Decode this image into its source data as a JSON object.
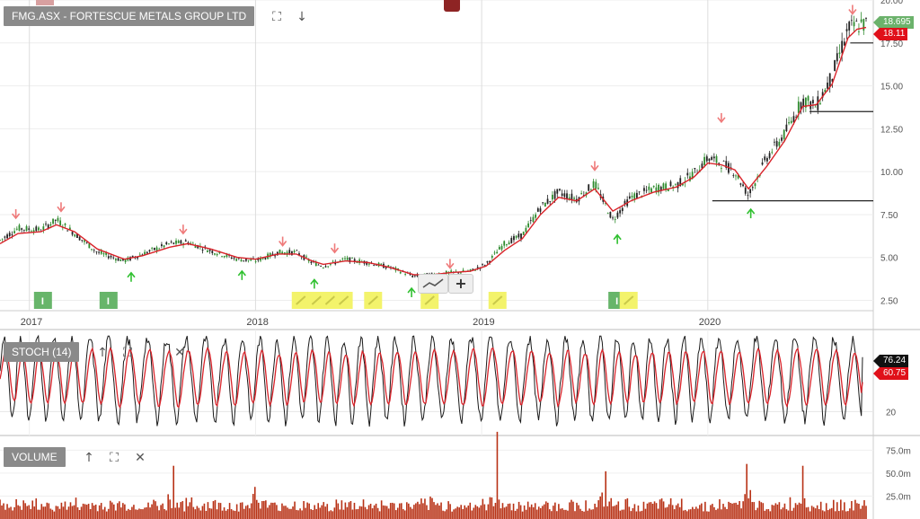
{
  "panels": {
    "main": {
      "title": "FMG.ASX - FORTESCUE METALS GROUP LTD"
    },
    "stoch": {
      "title": "STOCH (14)"
    },
    "volume": {
      "title": "VOLUME"
    }
  },
  "icons": {
    "expand": "⛶",
    "down": "↓",
    "up": "↑",
    "close": "✕",
    "plus": "+"
  },
  "colors": {
    "candle_up": "#2e8b2e",
    "candle_down": "#222222",
    "moving_average": "#d9232a",
    "stoch_k": "#1a1a1a",
    "stoch_d": "#d9232a",
    "volume": "#b83216",
    "green_tag": "#6bb26b",
    "red_tag": "#e0101a",
    "black_tag": "#111111",
    "signal_up": "#2fc02f",
    "signal_down": "#ef7a7a",
    "event_green": "#67b56a",
    "event_yellow": "#f3f36b"
  },
  "chart_data": [
    {
      "type": "candlestick",
      "title": "FMG.ASX - FORTESCUE METALS GROUP LTD",
      "x_ticks": [
        "2017",
        "2018",
        "2019",
        "2020"
      ],
      "x_range": [
        2016.87,
        2020.7
      ],
      "y_ticks": [
        "2.50",
        "5.00",
        "7.50",
        "10.00",
        "12.50",
        "15.00",
        "17.50",
        "20.00"
      ],
      "ylim": [
        1.9,
        20.0
      ],
      "close_path": [
        [
          2016.87,
          6.0
        ],
        [
          2016.95,
          6.7
        ],
        [
          2017.05,
          6.6
        ],
        [
          2017.12,
          7.2
        ],
        [
          2017.2,
          6.4
        ],
        [
          2017.3,
          5.3
        ],
        [
          2017.42,
          4.8
        ],
        [
          2017.5,
          5.2
        ],
        [
          2017.62,
          5.8
        ],
        [
          2017.7,
          5.9
        ],
        [
          2017.8,
          5.4
        ],
        [
          2017.92,
          4.9
        ],
        [
          2018.0,
          4.8
        ],
        [
          2018.1,
          5.3
        ],
        [
          2018.18,
          5.3
        ],
        [
          2018.25,
          4.7
        ],
        [
          2018.3,
          4.5
        ],
        [
          2018.4,
          4.9
        ],
        [
          2018.5,
          4.7
        ],
        [
          2018.6,
          4.4
        ],
        [
          2018.7,
          3.9
        ],
        [
          2018.78,
          4.0
        ],
        [
          2018.85,
          4.1
        ],
        [
          2018.95,
          4.2
        ],
        [
          2019.02,
          4.6
        ],
        [
          2019.1,
          5.8
        ],
        [
          2019.18,
          6.3
        ],
        [
          2019.26,
          7.9
        ],
        [
          2019.34,
          8.8
        ],
        [
          2019.42,
          8.4
        ],
        [
          2019.5,
          9.3
        ],
        [
          2019.58,
          7.2
        ],
        [
          2019.66,
          8.5
        ],
        [
          2019.76,
          9.0
        ],
        [
          2019.86,
          9.2
        ],
        [
          2019.94,
          9.9
        ],
        [
          2020.0,
          10.8
        ],
        [
          2020.06,
          10.5
        ],
        [
          2020.12,
          10.0
        ],
        [
          2020.18,
          8.6
        ],
        [
          2020.26,
          10.8
        ],
        [
          2020.34,
          12.2
        ],
        [
          2020.42,
          14.2
        ],
        [
          2020.48,
          13.8
        ],
        [
          2020.55,
          15.6
        ],
        [
          2020.62,
          18.3
        ],
        [
          2020.66,
          18.5
        ],
        [
          2020.7,
          18.6
        ]
      ],
      "moving_average_path": [
        [
          2016.87,
          5.8
        ],
        [
          2016.95,
          6.4
        ],
        [
          2017.05,
          6.5
        ],
        [
          2017.12,
          6.9
        ],
        [
          2017.2,
          6.5
        ],
        [
          2017.3,
          5.5
        ],
        [
          2017.42,
          4.9
        ],
        [
          2017.5,
          5.1
        ],
        [
          2017.62,
          5.6
        ],
        [
          2017.7,
          5.8
        ],
        [
          2017.8,
          5.5
        ],
        [
          2017.92,
          5.0
        ],
        [
          2018.0,
          4.9
        ],
        [
          2018.1,
          5.2
        ],
        [
          2018.18,
          5.2
        ],
        [
          2018.25,
          4.8
        ],
        [
          2018.3,
          4.6
        ],
        [
          2018.4,
          4.8
        ],
        [
          2018.5,
          4.7
        ],
        [
          2018.6,
          4.4
        ],
        [
          2018.7,
          4.0
        ],
        [
          2018.78,
          4.0
        ],
        [
          2018.85,
          4.1
        ],
        [
          2018.95,
          4.2
        ],
        [
          2019.02,
          4.5
        ],
        [
          2019.1,
          5.4
        ],
        [
          2019.18,
          6.1
        ],
        [
          2019.26,
          7.5
        ],
        [
          2019.34,
          8.5
        ],
        [
          2019.42,
          8.3
        ],
        [
          2019.5,
          9.0
        ],
        [
          2019.58,
          7.7
        ],
        [
          2019.66,
          8.3
        ],
        [
          2019.76,
          8.8
        ],
        [
          2019.86,
          9.1
        ],
        [
          2019.94,
          9.7
        ],
        [
          2020.0,
          10.5
        ],
        [
          2020.06,
          10.4
        ],
        [
          2020.12,
          10.1
        ],
        [
          2020.18,
          9.0
        ],
        [
          2020.26,
          10.3
        ],
        [
          2020.34,
          11.8
        ],
        [
          2020.42,
          13.8
        ],
        [
          2020.48,
          13.9
        ],
        [
          2020.55,
          15.1
        ],
        [
          2020.62,
          17.8
        ],
        [
          2020.66,
          18.3
        ],
        [
          2020.7,
          18.4
        ]
      ],
      "horizontal_levels": [
        {
          "value": 8.3,
          "from": 2020.02,
          "to": 2020.7
        },
        {
          "value": 13.5,
          "from": 2020.45,
          "to": 2020.7
        },
        {
          "value": 17.5,
          "from": 2020.63,
          "to": 2020.7
        }
      ],
      "price_tags": [
        {
          "label": "18.695",
          "value": 18.695,
          "color": "#6bb26b"
        },
        {
          "label": "18.11",
          "value": 18.11,
          "color": "#e0101a"
        }
      ],
      "signals_down": [
        [
          2016.94,
          7.5
        ],
        [
          2017.14,
          7.9
        ],
        [
          2017.68,
          6.6
        ],
        [
          2018.12,
          5.9
        ],
        [
          2018.35,
          5.5
        ],
        [
          2018.86,
          4.6
        ],
        [
          2019.5,
          10.3
        ],
        [
          2020.06,
          13.1
        ],
        [
          2020.64,
          19.4
        ]
      ],
      "signals_up": [
        [
          2017.45,
          3.9
        ],
        [
          2017.94,
          4.0
        ],
        [
          2018.26,
          3.5
        ],
        [
          2018.69,
          3.0
        ],
        [
          2019.6,
          6.1
        ],
        [
          2020.19,
          7.6
        ]
      ],
      "events": [
        {
          "kind": "I",
          "x": 2017.06,
          "style": "green"
        },
        {
          "kind": "I",
          "x": 2017.35,
          "style": "green"
        },
        {
          "kind": "note",
          "x": 2018.2,
          "style": "yellow"
        },
        {
          "kind": "note",
          "x": 2018.27,
          "style": "yellow"
        },
        {
          "kind": "note",
          "x": 2018.33,
          "style": "yellow"
        },
        {
          "kind": "note",
          "x": 2018.39,
          "style": "yellow"
        },
        {
          "kind": "note",
          "x": 2018.52,
          "style": "yellow"
        },
        {
          "kind": "note",
          "x": 2018.77,
          "style": "yellow"
        },
        {
          "kind": "note",
          "x": 2019.07,
          "style": "yellow"
        },
        {
          "kind": "I",
          "x": 2019.6,
          "style": "green"
        },
        {
          "kind": "note",
          "x": 2019.65,
          "style": "yellow"
        }
      ]
    },
    {
      "type": "line",
      "title": "STOCH (14)",
      "x_range": [
        2016.87,
        2020.7
      ],
      "y_ticks": [
        "20"
      ],
      "ylim": [
        0,
        100
      ],
      "series": [
        {
          "name": "",
          "last": "76.24",
          "color": "#111111"
        },
        {
          "name": "",
          "last": "60.75",
          "color": "#e0101a"
        }
      ],
      "oscillation": {
        "cycles": 48,
        "min": 10,
        "max": 95
      }
    },
    {
      "type": "bar",
      "title": "VOLUME",
      "x_range": [
        2016.87,
        2020.7
      ],
      "y_ticks": [
        "25.0m",
        "50.0m",
        "75.0m"
      ],
      "ylim": [
        0,
        90
      ],
      "typical_range_m": [
        8,
        25
      ],
      "spikes_m": [
        [
          2017.64,
          58
        ],
        [
          2018.0,
          35
        ],
        [
          2019.07,
          95
        ],
        [
          2019.55,
          52
        ],
        [
          2020.17,
          60
        ],
        [
          2020.42,
          58
        ]
      ]
    }
  ]
}
